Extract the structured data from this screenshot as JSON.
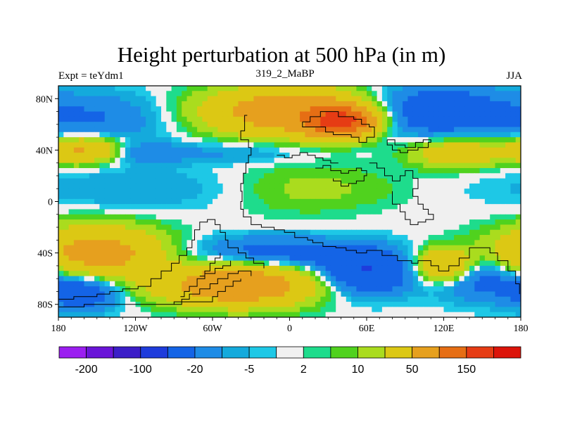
{
  "chart_data": {
    "type": "heatmap",
    "title": "Height perturbation at 500 hPa (in m)",
    "subtitle_left": "Expt = teYdm1",
    "subtitle_center": "319_2_MaBP",
    "subtitle_right": "JJA",
    "x_ticks": [
      {
        "value": -180,
        "label": "180"
      },
      {
        "value": -120,
        "label": "120W"
      },
      {
        "value": -60,
        "label": "60W"
      },
      {
        "value": 0,
        "label": "0"
      },
      {
        "value": 60,
        "label": "60E"
      },
      {
        "value": 120,
        "label": "120E"
      },
      {
        "value": 180,
        "label": "180"
      }
    ],
    "y_ticks": [
      {
        "value": 80,
        "label": "80N"
      },
      {
        "value": 40,
        "label": "40N"
      },
      {
        "value": 0,
        "label": "0"
      },
      {
        "value": -40,
        "label": "40S"
      },
      {
        "value": -80,
        "label": "80S"
      }
    ],
    "xlim": [
      -180,
      180
    ],
    "ylim": [
      -90,
      90
    ],
    "colorbar": {
      "levels": [
        -200,
        -150,
        -100,
        -50,
        -20,
        -10,
        -5,
        -2,
        2,
        5,
        10,
        20,
        50,
        100,
        150,
        200
      ],
      "labels": [
        {
          "value": -200,
          "label": "-200"
        },
        {
          "value": -100,
          "label": "-100"
        },
        {
          "value": -20,
          "label": "-20"
        },
        {
          "value": -5,
          "label": "-5"
        },
        {
          "value": 2,
          "label": "2"
        },
        {
          "value": 10,
          "label": "10"
        },
        {
          "value": 50,
          "label": "50"
        },
        {
          "value": 150,
          "label": "150"
        }
      ],
      "colors": [
        "#9b1ef0",
        "#6a14d8",
        "#3c1ec8",
        "#1e3cdc",
        "#1464e6",
        "#1e8ce6",
        "#14aadc",
        "#1ec8e6",
        "#f0f0f0",
        "#1edc8c",
        "#50d21e",
        "#aadc1e",
        "#dcc814",
        "#e6a01e",
        "#e66e14",
        "#e63c14",
        "#dc140a"
      ]
    },
    "field_features": [
      {
        "lon": -150,
        "lat": 65,
        "value": -20,
        "spread_lon": 40,
        "spread_lat": 14
      },
      {
        "lon": 0,
        "lat": 70,
        "value": 80,
        "spread_lon": 45,
        "spread_lat": 13
      },
      {
        "lon": 40,
        "lat": 62,
        "value": 150,
        "spread_lon": 18,
        "spread_lat": 8
      },
      {
        "lon": 110,
        "lat": 70,
        "value": -40,
        "spread_lon": 40,
        "spread_lat": 14
      },
      {
        "lon": -160,
        "lat": 40,
        "value": 60,
        "spread_lon": 22,
        "spread_lat": 7
      },
      {
        "lon": -120,
        "lat": 38,
        "value": -20,
        "spread_lon": 25,
        "spread_lat": 6
      },
      {
        "lon": -40,
        "lat": 38,
        "value": -12,
        "spread_lon": 40,
        "spread_lat": 6
      },
      {
        "lon": 130,
        "lat": 38,
        "value": 40,
        "spread_lon": 25,
        "spread_lat": 8
      },
      {
        "lon": -120,
        "lat": 10,
        "value": -10,
        "spread_lon": 60,
        "spread_lat": 12
      },
      {
        "lon": 10,
        "lat": 10,
        "value": 12,
        "spread_lon": 40,
        "spread_lat": 14
      },
      {
        "lon": 60,
        "lat": 10,
        "value": 3,
        "spread_lon": 30,
        "spread_lat": 10
      },
      {
        "lon": -150,
        "lat": -40,
        "value": 70,
        "spread_lon": 35,
        "spread_lat": 14
      },
      {
        "lon": -40,
        "lat": -65,
        "value": 90,
        "spread_lon": 40,
        "spread_lat": 11
      },
      {
        "lon": -160,
        "lat": -70,
        "value": -40,
        "spread_lon": 20,
        "spread_lat": 10
      },
      {
        "lon": -10,
        "lat": -40,
        "value": -30,
        "spread_lon": 45,
        "spread_lat": 9
      },
      {
        "lon": 60,
        "lat": -55,
        "value": -50,
        "spread_lon": 25,
        "spread_lat": 12
      },
      {
        "lon": 120,
        "lat": -50,
        "value": 60,
        "spread_lon": 15,
        "spread_lat": 9
      },
      {
        "lon": 150,
        "lat": -60,
        "value": -30,
        "spread_lon": 25,
        "spread_lat": 12
      }
    ]
  }
}
